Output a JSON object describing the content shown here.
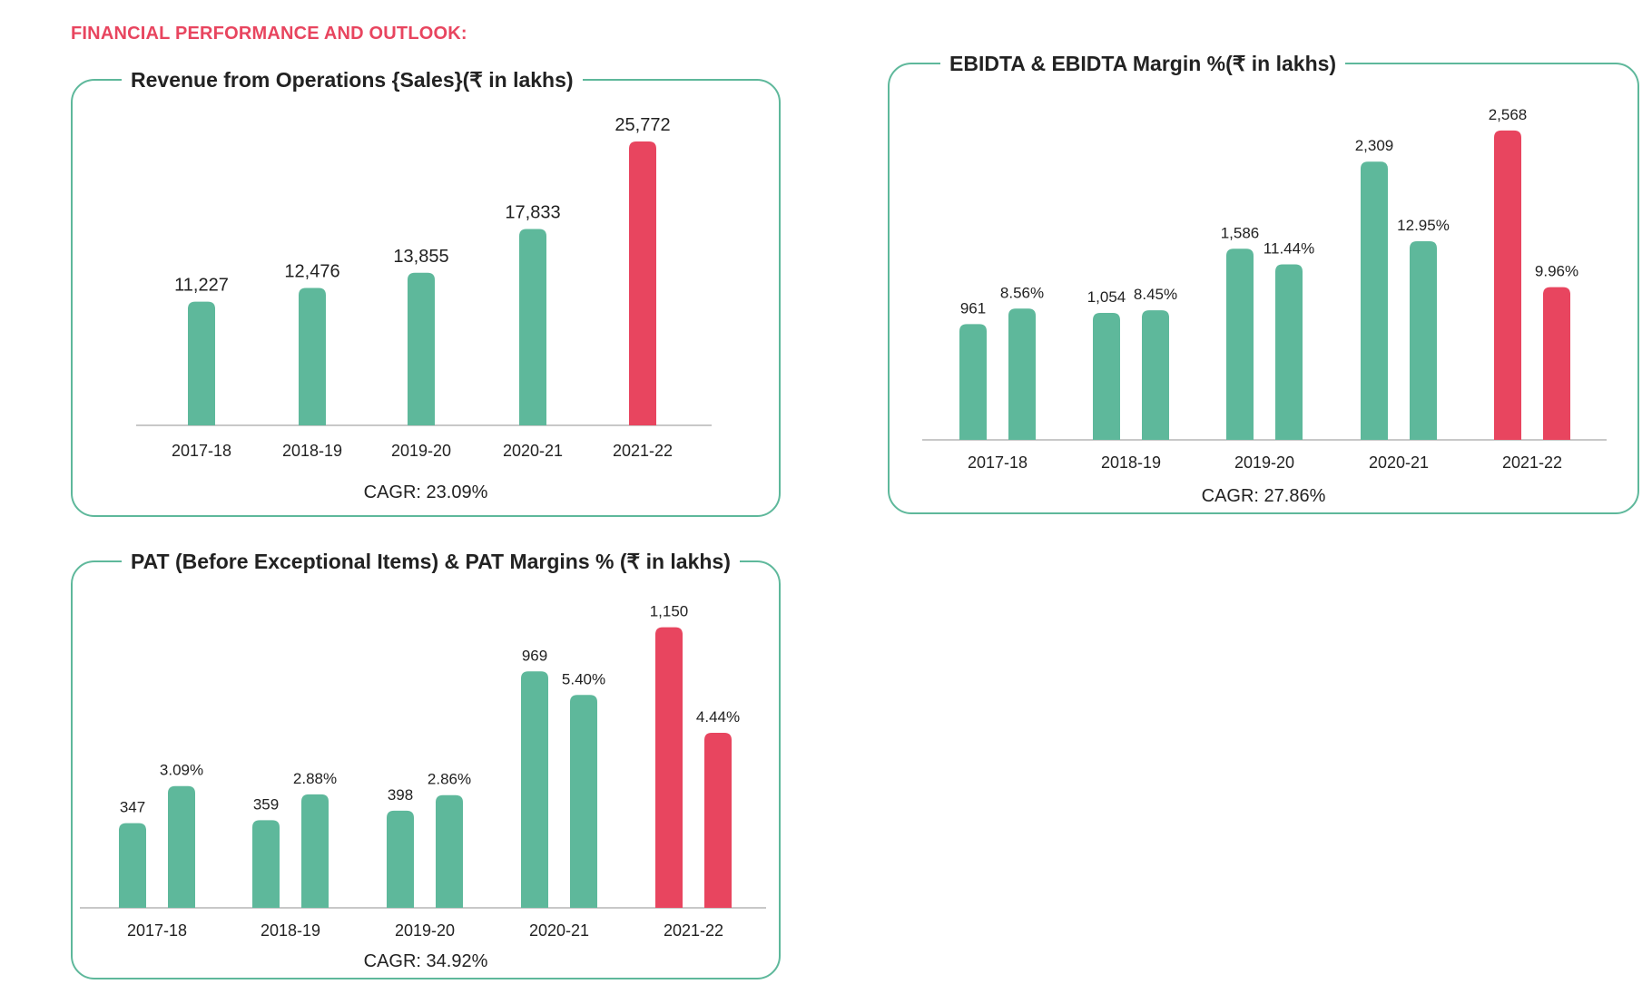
{
  "page": {
    "heading": "FINANCIAL PERFORMANCE AND OUTLOOK:"
  },
  "colors": {
    "green": "#5eb89b",
    "red": "#e8455f",
    "border": "#5eb89b"
  },
  "charts": {
    "revenue": {
      "title": "Revenue from Operations {Sales}(₹ in lakhs)",
      "cagr": "CAGR: 23.09%"
    },
    "ebidta": {
      "title": "EBIDTA & EBIDTA Margin %(₹ in lakhs)",
      "cagr": "CAGR: 27.86%"
    },
    "pat": {
      "title": "PAT (Before Exceptional Items) & PAT Margins % (₹ in lakhs)",
      "cagr": "CAGR: 34.92%"
    }
  },
  "chart_data": [
    {
      "id": "revenue",
      "type": "bar",
      "title": "Revenue from Operations {Sales}(₹ in lakhs)",
      "categories": [
        "2017-18",
        "2018-19",
        "2019-20",
        "2020-21",
        "2021-22"
      ],
      "series": [
        {
          "values": [
            11227,
            12476,
            13855,
            17833,
            25772
          ],
          "labels": [
            "11,227",
            "12,476",
            "13,855",
            "17,833",
            "25,772"
          ]
        }
      ],
      "highlight_category": "2021-22",
      "ylim": [
        0,
        28000
      ],
      "grid": false,
      "legend": "none"
    },
    {
      "id": "ebidta",
      "type": "bar",
      "title": "EBIDTA & EBIDTA Margin %(₹ in lakhs)",
      "categories": [
        "2017-18",
        "2018-19",
        "2019-20",
        "2020-21",
        "2021-22"
      ],
      "series": [
        {
          "values": [
            961,
            1054,
            1586,
            2309,
            2568
          ],
          "labels": [
            "961",
            "1,054",
            "1,586",
            "2,309",
            "2,568"
          ]
        },
        {
          "values": [
            8.56,
            8.45,
            11.44,
            12.95,
            9.96
          ],
          "labels": [
            "8.56%",
            "8.45%",
            "11.44%",
            "12.95%",
            "9.96%"
          ]
        }
      ],
      "highlight_category": "2021-22",
      "ylim": [
        0,
        2800
      ],
      "ylim_secondary": [
        0,
        22
      ],
      "grid": false,
      "legend": "none"
    },
    {
      "id": "pat",
      "type": "bar",
      "title": "PAT (Before Exceptional Items) & PAT Margins % (₹ in lakhs)",
      "categories": [
        "2017-18",
        "2018-19",
        "2019-20",
        "2020-21",
        "2021-22"
      ],
      "series": [
        {
          "values": [
            347,
            359,
            398,
            969,
            1150
          ],
          "labels": [
            "347",
            "359",
            "398",
            "969",
            "1,150"
          ]
        },
        {
          "values": [
            3.09,
            2.88,
            2.86,
            5.4,
            4.44
          ],
          "labels": [
            "3.09%",
            "2.88%",
            "2.86%",
            "5.40%",
            "4.44%"
          ]
        }
      ],
      "highlight_category": "2021-22",
      "ylim": [
        0,
        1260
      ],
      "ylim_secondary": [
        0,
        7.8
      ],
      "grid": false,
      "legend": "none"
    }
  ]
}
